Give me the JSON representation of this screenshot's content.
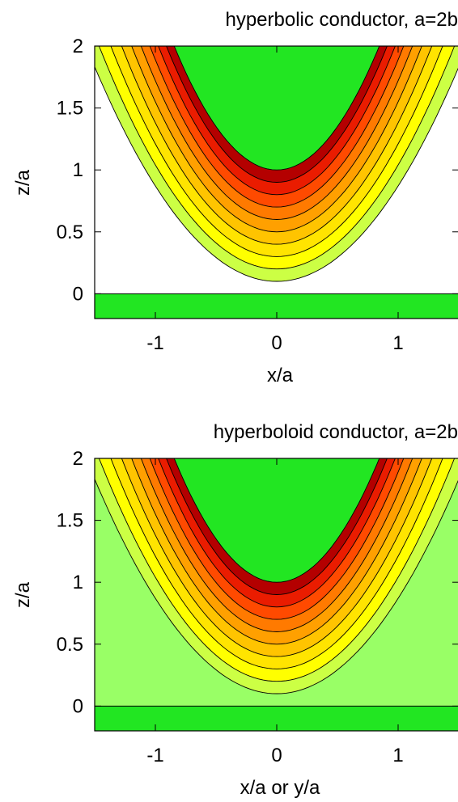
{
  "chart_data": [
    {
      "type": "contour",
      "title": "hyperbolic conductor, a=2b",
      "xlabel": "x/a",
      "ylabel": "z/a",
      "xlim": [
        -1.5,
        1.5
      ],
      "ylim": [
        -0.2,
        2
      ],
      "xticks": [
        {
          "value": -1,
          "label": "-1"
        },
        {
          "value": 0,
          "label": "0"
        },
        {
          "value": 1,
          "label": "1"
        }
      ],
      "yticks": [
        {
          "value": 0,
          "label": "0"
        },
        {
          "value": 0.5,
          "label": "0.5"
        },
        {
          "value": 1,
          "label": "1"
        },
        {
          "value": 1.5,
          "label": "1.5"
        },
        {
          "value": 2,
          "label": "2"
        }
      ],
      "grid": false,
      "conductor_color": "#22e622",
      "ground_plane_top": 0.0,
      "conductor_vertex": 1.0,
      "contour_levels": [
        0.1,
        0.2,
        0.3,
        0.4,
        0.5,
        0.6,
        0.7,
        0.8,
        0.9
      ],
      "level_colors": [
        "#ffffff",
        "#ccff44",
        "#ffff00",
        "#ffe400",
        "#ffc400",
        "#ffa000",
        "#ff7a00",
        "#ff4a00",
        "#ea1c00",
        "#b40000"
      ]
    },
    {
      "type": "contour",
      "title": "hyperboloid conductor, a=2b",
      "xlabel": "x/a or y/a",
      "ylabel": "z/a",
      "xlim": [
        -1.5,
        1.5
      ],
      "ylim": [
        -0.2,
        2
      ],
      "xticks": [
        {
          "value": -1,
          "label": "-1"
        },
        {
          "value": 0,
          "label": "0"
        },
        {
          "value": 1,
          "label": "1"
        }
      ],
      "yticks": [
        {
          "value": 0,
          "label": "0"
        },
        {
          "value": 0.5,
          "label": "0.5"
        },
        {
          "value": 1,
          "label": "1"
        },
        {
          "value": 1.5,
          "label": "1.5"
        },
        {
          "value": 2,
          "label": "2"
        }
      ],
      "grid": false,
      "conductor_color": "#22e622",
      "ground_plane_top": 0.0,
      "conductor_vertex": 1.0,
      "contour_levels": [
        0.1,
        0.2,
        0.3,
        0.4,
        0.5,
        0.6,
        0.7,
        0.8,
        0.9
      ],
      "level_colors": [
        "#99ff66",
        "#ccff44",
        "#ffff00",
        "#ffe400",
        "#ffc400",
        "#ffa000",
        "#ff7a00",
        "#ff4a00",
        "#ea1c00",
        "#b40000"
      ]
    }
  ]
}
